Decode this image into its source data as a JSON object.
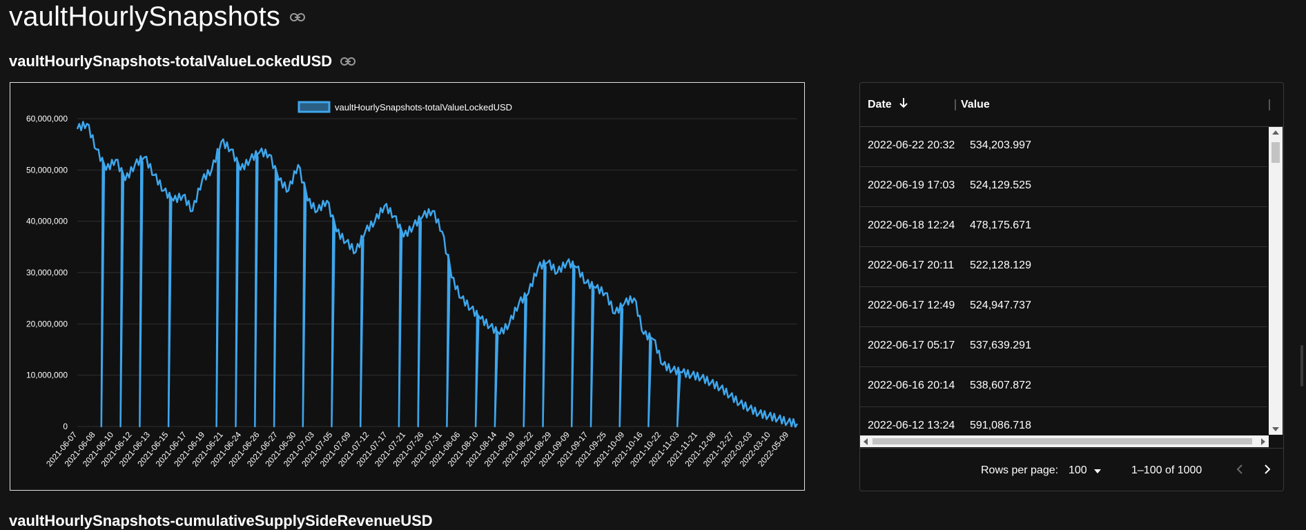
{
  "page": {
    "title": "vaultHourlySnapshots"
  },
  "section": {
    "title": "vaultHourlySnapshots-totalValueLockedUSD"
  },
  "next_section": {
    "title": "vaultHourlySnapshots-cumulativeSupplySideRevenueUSD"
  },
  "icons": {
    "link": "link-icon",
    "sort": "arrow-down-icon",
    "dropdown": "caret-down-icon",
    "prev": "chevron-left-icon",
    "next": "chevron-right-icon"
  },
  "colors": {
    "series": "#3ea6ec",
    "background": "#141414"
  },
  "table": {
    "headers": {
      "date": "Date",
      "value": "Value"
    },
    "rows": [
      {
        "date": "2022-06-22 20:32",
        "value": "534,203.997"
      },
      {
        "date": "2022-06-19 17:03",
        "value": "524,129.525"
      },
      {
        "date": "2022-06-18 12:24",
        "value": "478,175.671"
      },
      {
        "date": "2022-06-17 20:11",
        "value": "522,128.129"
      },
      {
        "date": "2022-06-17 12:49",
        "value": "524,947.737"
      },
      {
        "date": "2022-06-17 05:17",
        "value": "537,639.291"
      },
      {
        "date": "2022-06-16 20:14",
        "value": "538,607.872"
      },
      {
        "date": "2022-06-12 13:24",
        "value": "591,086.718"
      }
    ],
    "rows_per_page_label": "Rows per page:",
    "rows_per_page": "100",
    "range_label": "1–100 of 1000"
  },
  "chart_data": {
    "type": "line",
    "title": "",
    "legend": "vaultHourlySnapshots-totalValueLockedUSD",
    "legend_position": "top-center",
    "xlabel": "",
    "ylabel": "",
    "ylim": [
      0,
      60000000
    ],
    "y_ticks": [
      "0",
      "10,000,000",
      "20,000,000",
      "30,000,000",
      "40,000,000",
      "50,000,000",
      "60,000,000"
    ],
    "x_tick_labels": [
      "2021-06-07",
      "2021-06-08",
      "2021-06-10",
      "2021-06-12",
      "2021-06-13",
      "2021-06-15",
      "2021-06-17",
      "2021-06-19",
      "2021-06-21",
      "2021-06-24",
      "2021-06-26",
      "2021-06-27",
      "2021-06-30",
      "2021-07-03",
      "2021-07-05",
      "2021-07-09",
      "2021-07-12",
      "2021-07-17",
      "2021-07-21",
      "2021-07-26",
      "2021-07-31",
      "2021-08-06",
      "2021-08-10",
      "2021-08-14",
      "2021-08-19",
      "2021-08-22",
      "2021-08-29",
      "2021-09-09",
      "2021-09-17",
      "2021-09-25",
      "2021-10-09",
      "2021-10-16",
      "2021-10-22",
      "2021-11-03",
      "2021-11-21",
      "2021-12-08",
      "2021-12-27",
      "2022-02-03",
      "2022-03-10",
      "2022-05-09"
    ],
    "series": [
      {
        "name": "vaultHourlySnapshots-totalValueLockedUSD",
        "values": [
          58000000,
          59000000,
          54000000,
          50000000,
          52000000,
          48000000,
          51000000,
          52500000,
          49000000,
          46000000,
          44000000,
          45000000,
          42000000,
          48000000,
          50000000,
          55500000,
          54000000,
          50000000,
          52000000,
          53500000,
          53000000,
          48000000,
          46000000,
          51000000,
          44000000,
          42000000,
          44000000,
          38000000,
          36000000,
          34000000,
          38000000,
          40000000,
          43000000,
          41000000,
          37000000,
          39000000,
          41000000,
          42000000,
          38000000,
          29000000,
          25000000,
          23000000,
          21000000,
          19500000,
          18000000,
          20000000,
          24000000,
          26000000,
          31000000,
          32000000,
          30000000,
          32000000,
          31000000,
          28000000,
          27000000,
          26000000,
          22000000,
          24000000,
          25000000,
          18000000,
          17000000,
          12000000,
          11000000,
          10500000,
          10000000,
          9500000,
          8500000,
          7500000,
          6000000,
          4500000,
          3500000,
          2500000,
          2000000,
          1500000,
          800000,
          534204
        ],
        "dips_to_zero_at_x_index": [
          2,
          4,
          6,
          9,
          14,
          16,
          18,
          20,
          23,
          26,
          29,
          33,
          35,
          38,
          41,
          43,
          46,
          48,
          51,
          53,
          56,
          59,
          62
        ]
      }
    ]
  }
}
